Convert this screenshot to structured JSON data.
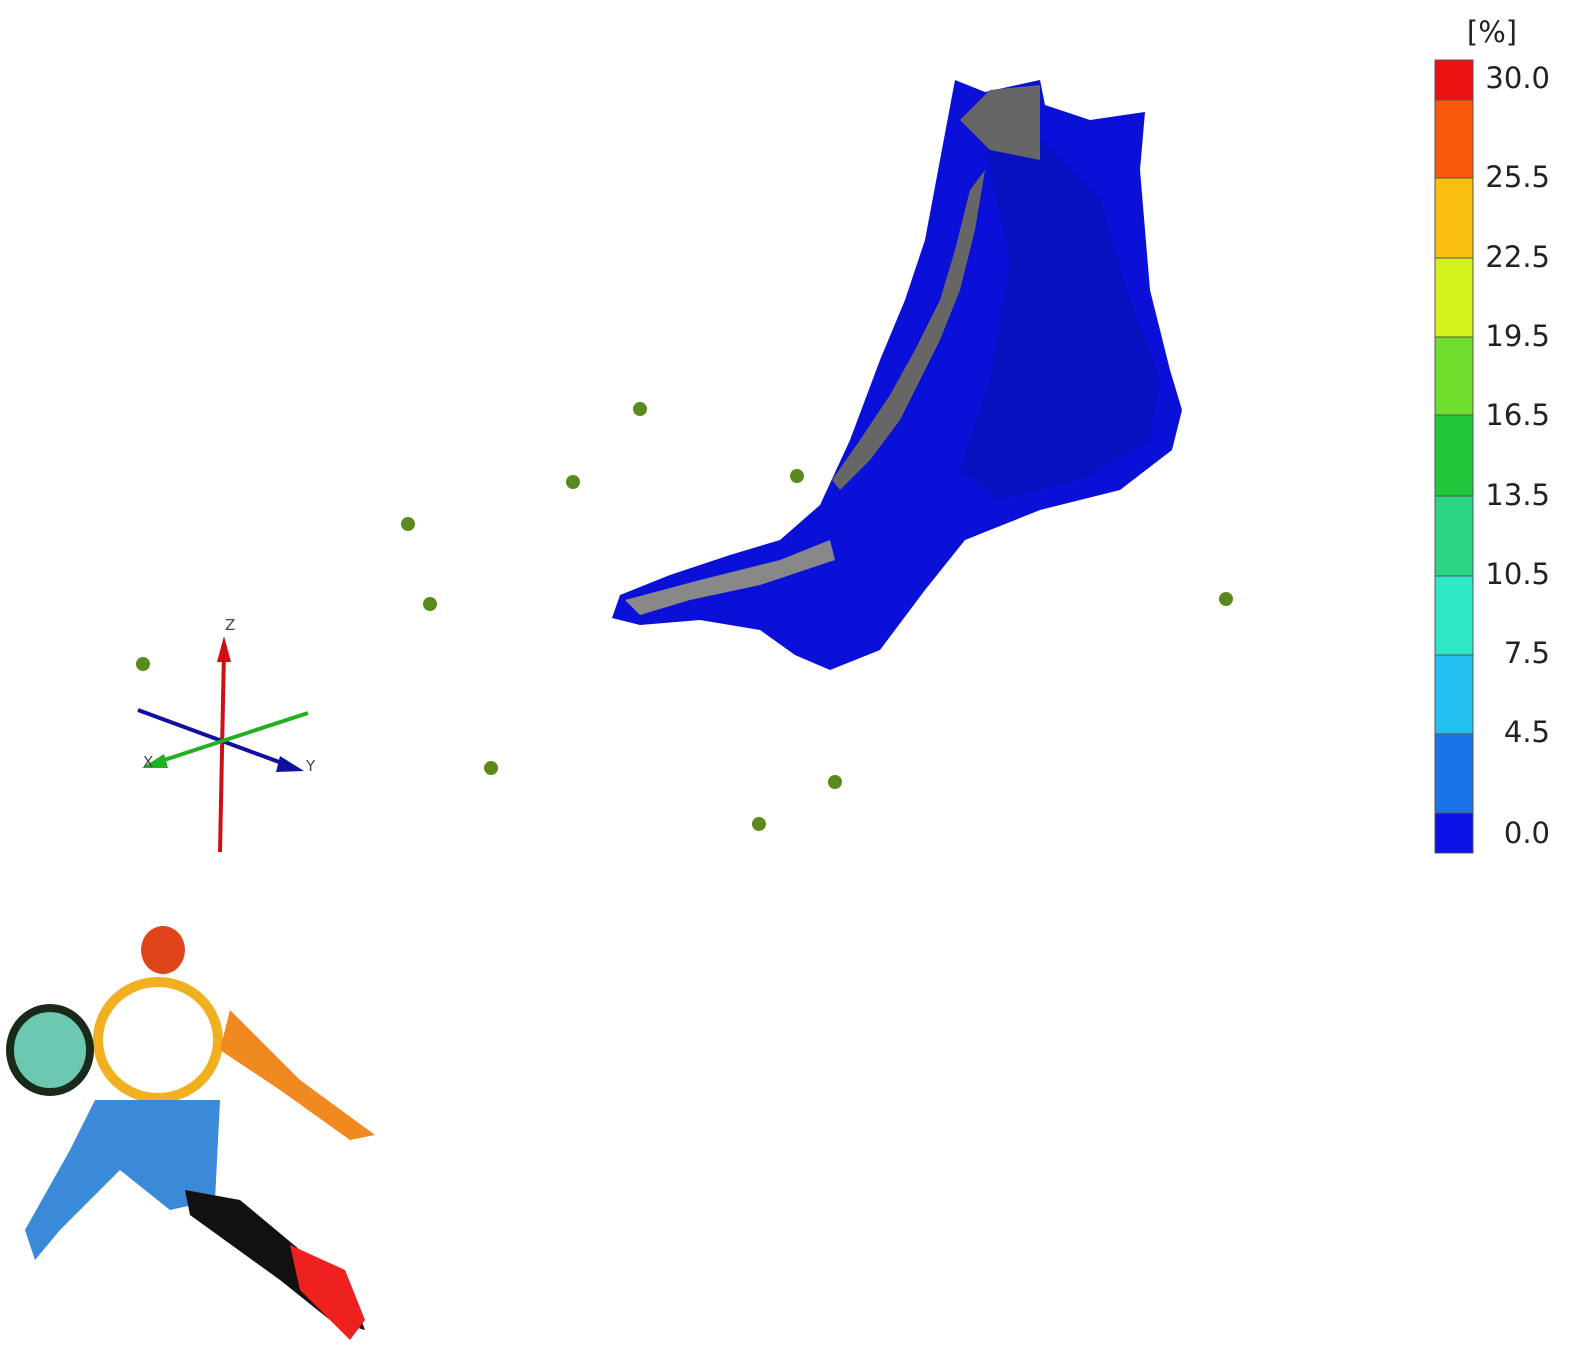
{
  "legend": {
    "unit": "[%]",
    "labels": [
      "30.0",
      "25.5",
      "22.5",
      "19.5",
      "16.5",
      "13.5",
      "10.5",
      "7.5",
      "4.5",
      "0.0"
    ],
    "colors": [
      "#ee1111",
      "#f85a0a",
      "#fbbf10",
      "#d4f21a",
      "#6fde2c",
      "#1fc83a",
      "#2ad682",
      "#2ee8c8",
      "#22c0f0",
      "#1a73e8",
      "#0b14e6"
    ]
  },
  "axes": {
    "x": "X",
    "y": "Y",
    "z": "Z"
  }
}
